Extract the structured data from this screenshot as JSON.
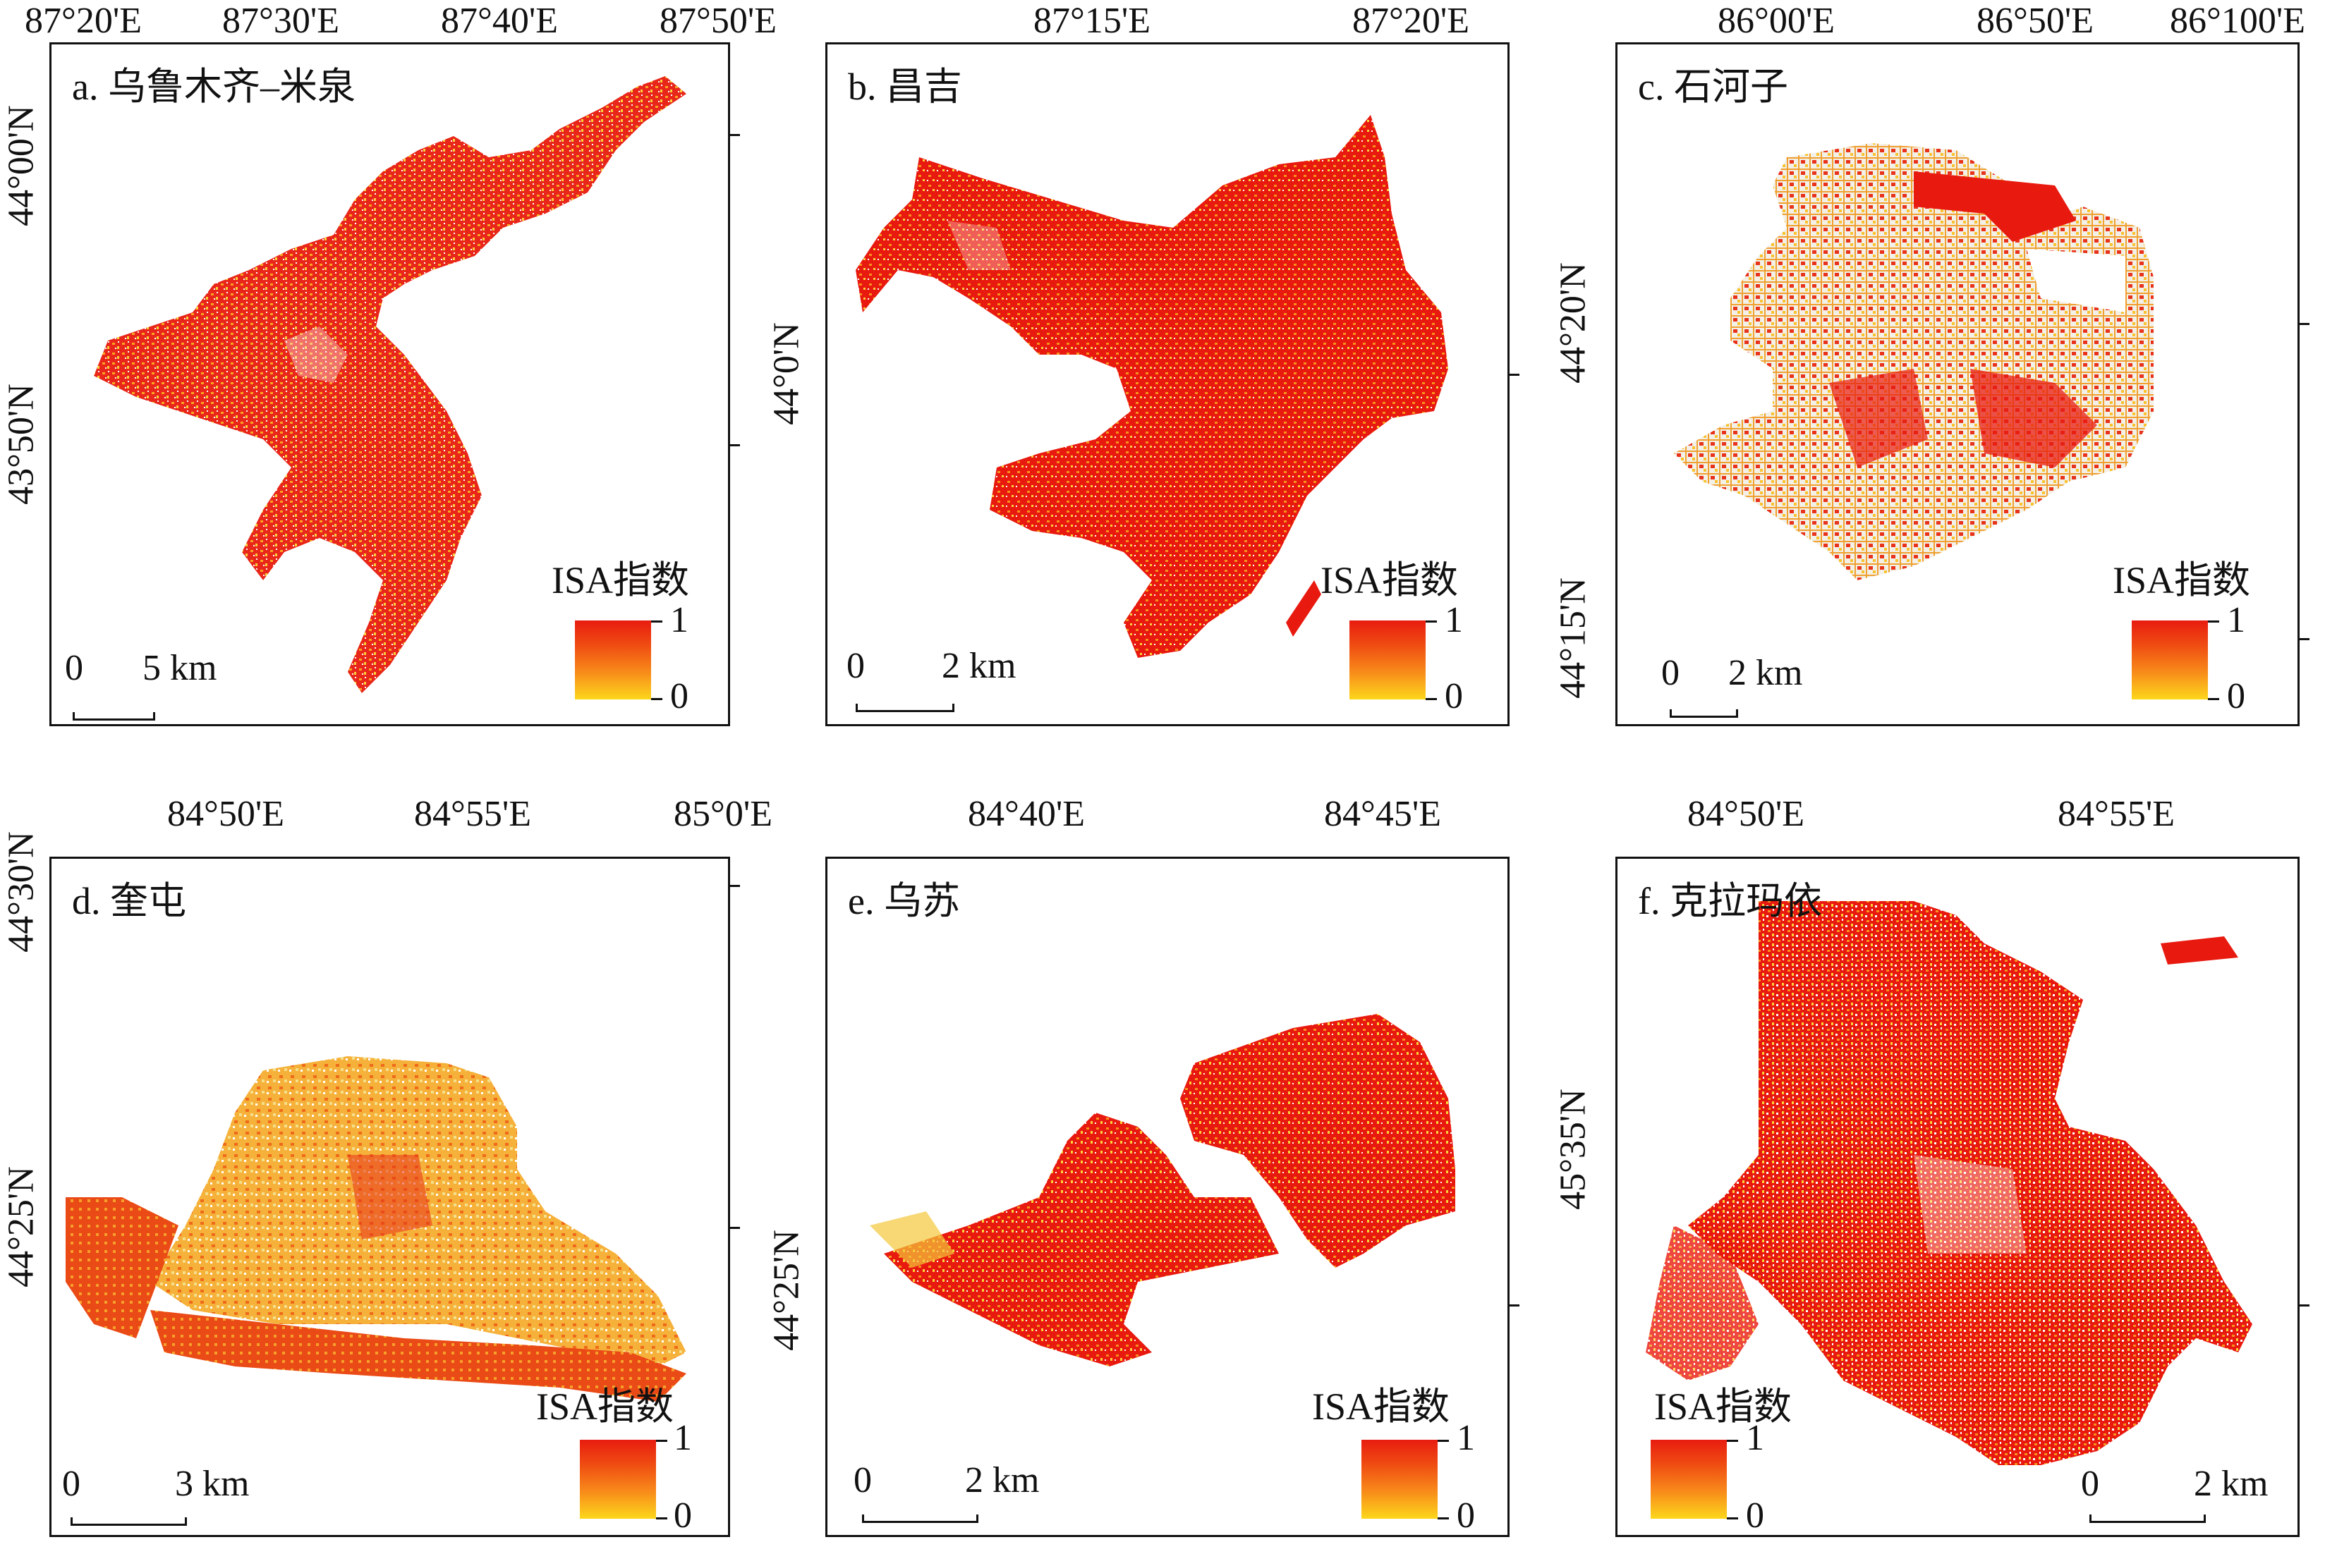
{
  "legend": {
    "title": "ISA指数",
    "high": "1",
    "low": "0"
  },
  "colors": {
    "high": "#e81c10",
    "mid": "#f88a1a",
    "low": "#fcd71c",
    "frame": "#111111"
  },
  "panels": [
    {
      "id": "a",
      "title": "a. 乌鲁木齐–米泉",
      "lon_labels": [
        "87°20'E",
        "87°30'E",
        "87°40'E",
        "87°50'E"
      ],
      "lat_labels": [
        "44°00'N",
        "43°50'N"
      ],
      "scale": {
        "zero": "0",
        "length": "5 km"
      }
    },
    {
      "id": "b",
      "title": "b. 昌吉",
      "lon_labels": [
        "87°15'E",
        "87°20'E"
      ],
      "lat_labels": [
        "44°0'N"
      ],
      "scale": {
        "zero": "0",
        "length": "2 km"
      }
    },
    {
      "id": "c",
      "title": "c. 石河子",
      "lon_labels": [
        "86°00'E",
        "86°50'E",
        "86°100'E"
      ],
      "lat_labels": [
        "44°20'N",
        "44°15'N"
      ],
      "scale": {
        "zero": "0",
        "length": "2 km"
      }
    },
    {
      "id": "d",
      "title": "d. 奎屯",
      "lon_labels": [
        "84°50'E",
        "84°55'E",
        "85°0'E"
      ],
      "lat_labels": [
        "44°30'N",
        "44°25'N"
      ],
      "scale": {
        "zero": "0",
        "length": "3 km"
      }
    },
    {
      "id": "e",
      "title": "e. 乌苏",
      "lon_labels": [
        "84°40'E",
        "84°45'E"
      ],
      "lat_labels": [
        "44°25'N"
      ],
      "scale": {
        "zero": "0",
        "length": "2 km"
      }
    },
    {
      "id": "f",
      "title": "f. 克拉玛依",
      "lon_labels": [
        "84°50'E",
        "84°55'E"
      ],
      "lat_labels": [
        "45°35'N"
      ],
      "scale": {
        "zero": "0",
        "length": "2 km"
      }
    }
  ]
}
